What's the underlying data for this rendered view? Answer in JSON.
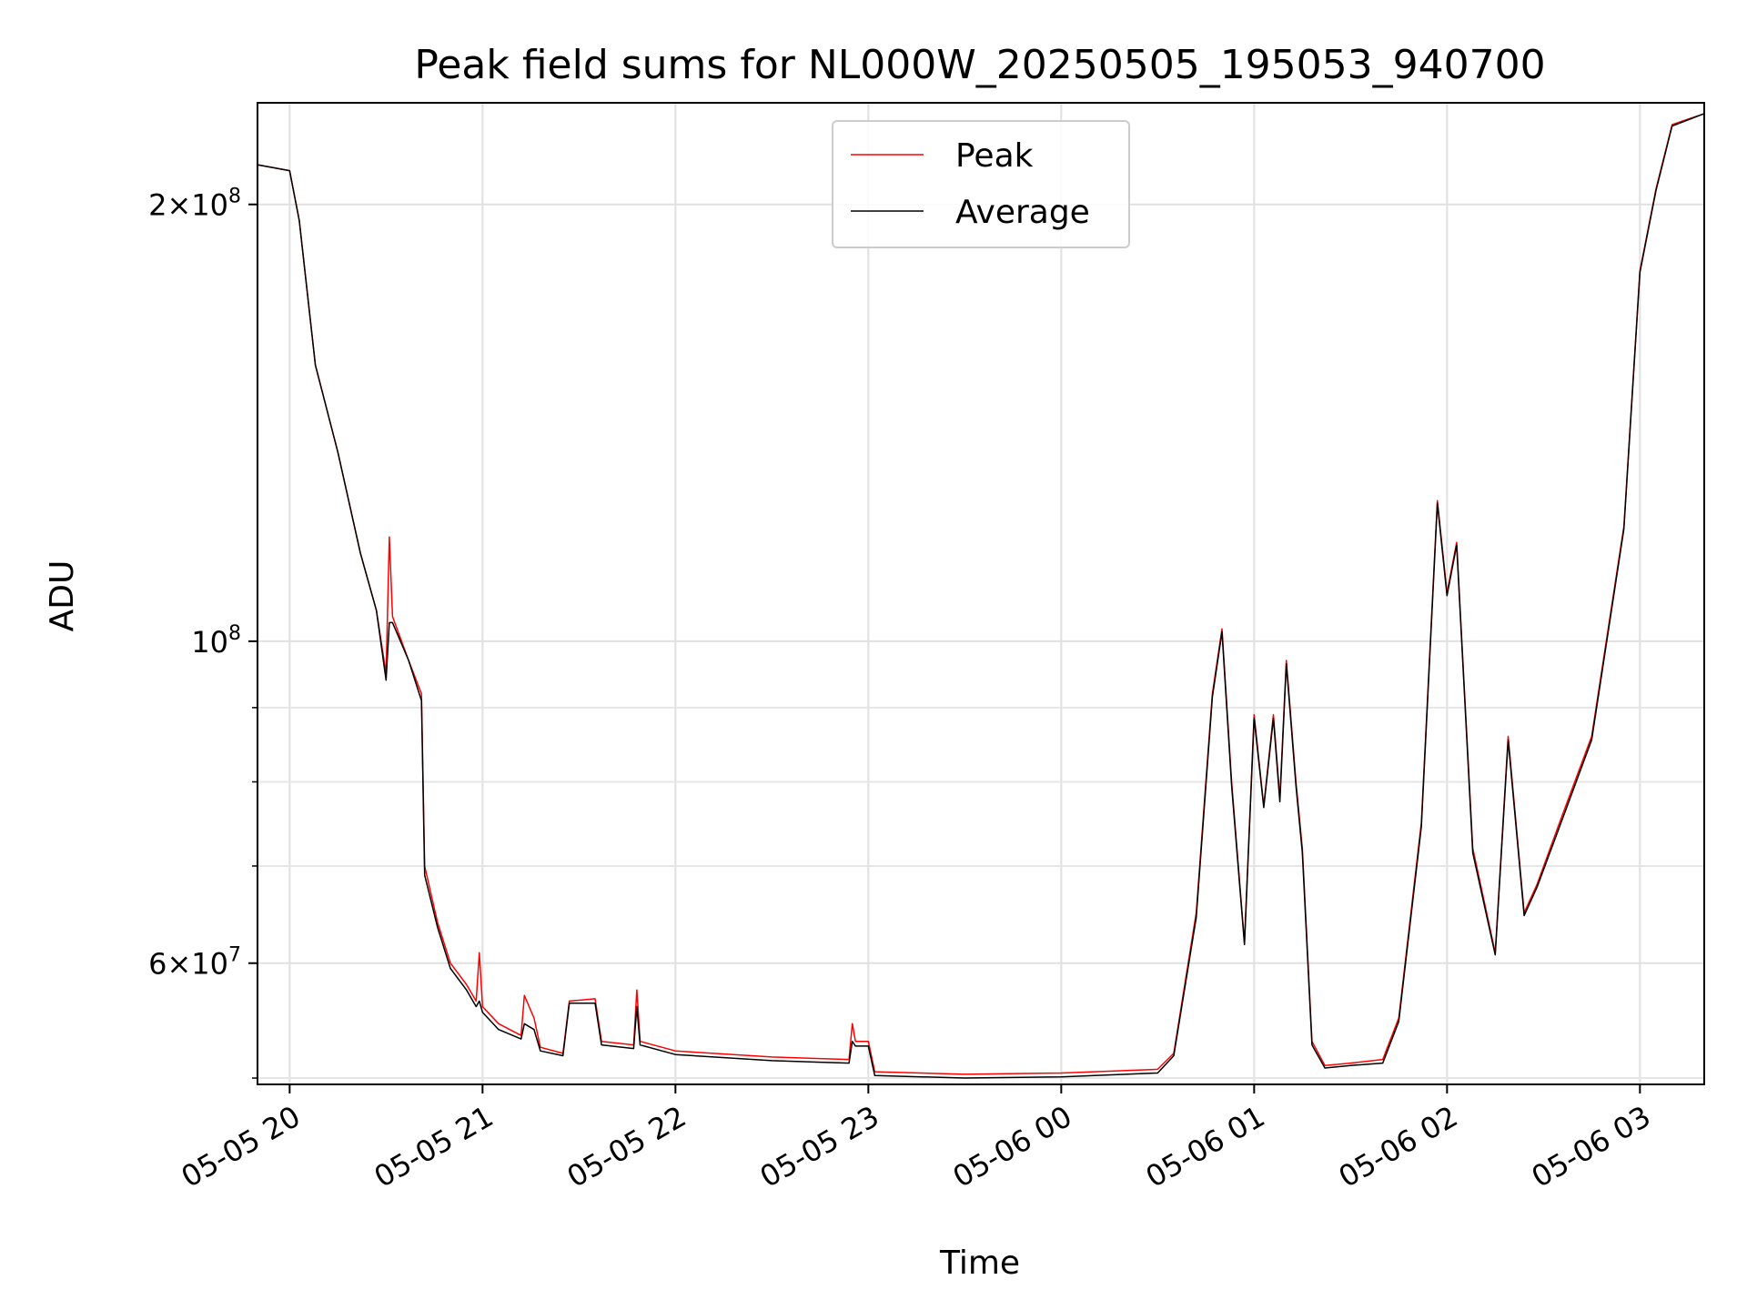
{
  "chart_data": {
    "type": "line",
    "title": "Peak field sums for NL000W_20250505_195053_940700",
    "xlabel": "Time",
    "ylabel": "ADU",
    "yscale": "log",
    "ylim": [
      49500000,
      235000000
    ],
    "xlim": [
      "2025-05-05 19:50",
      "2025-05-06 03:20"
    ],
    "x_ticks": [
      {
        "value": "2025-05-05 20:00",
        "label": "05-05 20"
      },
      {
        "value": "2025-05-05 21:00",
        "label": "05-05 21"
      },
      {
        "value": "2025-05-05 22:00",
        "label": "05-05 22"
      },
      {
        "value": "2025-05-05 23:00",
        "label": "05-05 23"
      },
      {
        "value": "2025-05-06 00:00",
        "label": "05-06 00"
      },
      {
        "value": "2025-05-06 01:00",
        "label": "05-06 01"
      },
      {
        "value": "2025-05-06 02:00",
        "label": "05-06 02"
      },
      {
        "value": "2025-05-06 03:00",
        "label": "05-06 03"
      }
    ],
    "y_major_ticks": [
      {
        "value": 60000000,
        "base": "6",
        "exp": "7"
      },
      {
        "value": 100000000,
        "base": "",
        "exp": "8"
      },
      {
        "value": 200000000,
        "base": "2",
        "exp": "8"
      }
    ],
    "y_minor_ticks": [
      50000000,
      70000000,
      80000000,
      90000000
    ],
    "grid": true,
    "legend_position": "top-center",
    "series": [
      {
        "name": "Peak",
        "color": "#ff0000",
        "points": [
          [
            "2025-05-05 19:50",
            213000000
          ],
          [
            "2025-05-05 19:55",
            212000000
          ],
          [
            "2025-05-05 20:00",
            211000000
          ],
          [
            "2025-05-05 20:03",
            195000000
          ],
          [
            "2025-05-05 20:08",
            155000000
          ],
          [
            "2025-05-05 20:15",
            135000000
          ],
          [
            "2025-05-05 20:22",
            115000000
          ],
          [
            "2025-05-05 20:27",
            105000000
          ],
          [
            "2025-05-05 20:30",
            95000000
          ],
          [
            "2025-05-05 20:31",
            118000000
          ],
          [
            "2025-05-05 20:32",
            104000000
          ],
          [
            "2025-05-05 20:37",
            97000000
          ],
          [
            "2025-05-05 20:41",
            92000000
          ],
          [
            "2025-05-05 20:42",
            70000000
          ],
          [
            "2025-05-05 20:46",
            64000000
          ],
          [
            "2025-05-05 20:50",
            60000000
          ],
          [
            "2025-05-05 20:55",
            58000000
          ],
          [
            "2025-05-05 20:58",
            56500000
          ],
          [
            "2025-05-05 20:59",
            61000000
          ],
          [
            "2025-05-05 21:00",
            56000000
          ],
          [
            "2025-05-05 21:05",
            54500000
          ],
          [
            "2025-05-05 21:12",
            53500000
          ],
          [
            "2025-05-05 21:13",
            57000000
          ],
          [
            "2025-05-05 21:16",
            55000000
          ],
          [
            "2025-05-05 21:18",
            52500000
          ],
          [
            "2025-05-05 21:25",
            52000000
          ],
          [
            "2025-05-05 21:27",
            56500000
          ],
          [
            "2025-05-05 21:35",
            56700000
          ],
          [
            "2025-05-05 21:37",
            53000000
          ],
          [
            "2025-05-05 21:47",
            52700000
          ],
          [
            "2025-05-05 21:48",
            57500000
          ],
          [
            "2025-05-05 21:49",
            53000000
          ],
          [
            "2025-05-05 22:00",
            52200000
          ],
          [
            "2025-05-05 22:30",
            51700000
          ],
          [
            "2025-05-05 22:54",
            51500000
          ],
          [
            "2025-05-05 22:55",
            54500000
          ],
          [
            "2025-05-05 22:56",
            53000000
          ],
          [
            "2025-05-05 23:00",
            53000000
          ],
          [
            "2025-05-05 23:02",
            50500000
          ],
          [
            "2025-05-05 23:30",
            50300000
          ],
          [
            "2025-05-06 00:00",
            50400000
          ],
          [
            "2025-05-06 00:30",
            50700000
          ],
          [
            "2025-05-06 00:35",
            52000000
          ],
          [
            "2025-05-06 00:42",
            65000000
          ],
          [
            "2025-05-06 00:47",
            92000000
          ],
          [
            "2025-05-06 00:50",
            102000000
          ],
          [
            "2025-05-06 00:53",
            80000000
          ],
          [
            "2025-05-06 00:57",
            62000000
          ],
          [
            "2025-05-06 01:00",
            89000000
          ],
          [
            "2025-05-06 01:03",
            77000000
          ],
          [
            "2025-05-06 01:06",
            89000000
          ],
          [
            "2025-05-06 01:08",
            78000000
          ],
          [
            "2025-05-06 01:10",
            97000000
          ],
          [
            "2025-05-06 01:13",
            80000000
          ],
          [
            "2025-05-06 01:15",
            72000000
          ],
          [
            "2025-05-06 01:18",
            53000000
          ],
          [
            "2025-05-06 01:22",
            51000000
          ],
          [
            "2025-05-06 01:30",
            51200000
          ],
          [
            "2025-05-06 01:40",
            51500000
          ],
          [
            "2025-05-06 01:45",
            55000000
          ],
          [
            "2025-05-06 01:52",
            75000000
          ],
          [
            "2025-05-06 01:57",
            125000000
          ],
          [
            "2025-05-06 02:00",
            108000000
          ],
          [
            "2025-05-06 02:03",
            117000000
          ],
          [
            "2025-05-06 02:08",
            72000000
          ],
          [
            "2025-05-06 02:15",
            61000000
          ],
          [
            "2025-05-06 02:19",
            86000000
          ],
          [
            "2025-05-06 02:24",
            65000000
          ],
          [
            "2025-05-06 02:28",
            68000000
          ],
          [
            "2025-05-06 02:35",
            75000000
          ],
          [
            "2025-05-06 02:45",
            86000000
          ],
          [
            "2025-05-06 02:55",
            120000000
          ],
          [
            "2025-05-06 03:00",
            180000000
          ],
          [
            "2025-05-06 03:05",
            205000000
          ],
          [
            "2025-05-06 03:10",
            227000000
          ],
          [
            "2025-05-06 03:20",
            231000000
          ]
        ]
      },
      {
        "name": "Average",
        "color": "#000000",
        "points": [
          [
            "2025-05-05 19:50",
            213000000
          ],
          [
            "2025-05-05 19:55",
            212000000
          ],
          [
            "2025-05-05 20:00",
            211000000
          ],
          [
            "2025-05-05 20:03",
            195000000
          ],
          [
            "2025-05-05 20:08",
            155000000
          ],
          [
            "2025-05-05 20:15",
            135000000
          ],
          [
            "2025-05-05 20:22",
            115000000
          ],
          [
            "2025-05-05 20:27",
            105000000
          ],
          [
            "2025-05-05 20:30",
            94000000
          ],
          [
            "2025-05-05 20:31",
            103000000
          ],
          [
            "2025-05-05 20:32",
            103000000
          ],
          [
            "2025-05-05 20:37",
            97000000
          ],
          [
            "2025-05-05 20:41",
            91000000
          ],
          [
            "2025-05-05 20:42",
            69000000
          ],
          [
            "2025-05-05 20:46",
            63500000
          ],
          [
            "2025-05-05 20:50",
            59500000
          ],
          [
            "2025-05-05 20:55",
            57500000
          ],
          [
            "2025-05-05 20:58",
            56000000
          ],
          [
            "2025-05-05 20:59",
            56500000
          ],
          [
            "2025-05-05 21:00",
            55500000
          ],
          [
            "2025-05-05 21:05",
            54000000
          ],
          [
            "2025-05-05 21:12",
            53200000
          ],
          [
            "2025-05-05 21:13",
            54500000
          ],
          [
            "2025-05-05 21:16",
            54000000
          ],
          [
            "2025-05-05 21:18",
            52200000
          ],
          [
            "2025-05-05 21:25",
            51800000
          ],
          [
            "2025-05-05 21:27",
            56300000
          ],
          [
            "2025-05-05 21:35",
            56300000
          ],
          [
            "2025-05-05 21:37",
            52700000
          ],
          [
            "2025-05-05 21:47",
            52400000
          ],
          [
            "2025-05-05 21:48",
            56000000
          ],
          [
            "2025-05-05 21:49",
            52700000
          ],
          [
            "2025-05-05 22:00",
            51900000
          ],
          [
            "2025-05-05 22:30",
            51400000
          ],
          [
            "2025-05-05 22:54",
            51200000
          ],
          [
            "2025-05-05 22:55",
            53000000
          ],
          [
            "2025-05-05 22:56",
            52600000
          ],
          [
            "2025-05-05 23:00",
            52600000
          ],
          [
            "2025-05-05 23:02",
            50200000
          ],
          [
            "2025-05-05 23:30",
            50000000
          ],
          [
            "2025-05-06 00:00",
            50100000
          ],
          [
            "2025-05-06 00:30",
            50400000
          ],
          [
            "2025-05-06 00:35",
            51800000
          ],
          [
            "2025-05-06 00:42",
            64500000
          ],
          [
            "2025-05-06 00:47",
            91500000
          ],
          [
            "2025-05-06 00:50",
            101500000
          ],
          [
            "2025-05-06 00:53",
            79500000
          ],
          [
            "2025-05-06 00:57",
            61800000
          ],
          [
            "2025-05-06 01:00",
            88500000
          ],
          [
            "2025-05-06 01:03",
            76800000
          ],
          [
            "2025-05-06 01:06",
            88500000
          ],
          [
            "2025-05-06 01:08",
            77500000
          ],
          [
            "2025-05-06 01:10",
            96500000
          ],
          [
            "2025-05-06 01:13",
            79500000
          ],
          [
            "2025-05-06 01:15",
            71500000
          ],
          [
            "2025-05-06 01:18",
            52700000
          ],
          [
            "2025-05-06 01:22",
            50800000
          ],
          [
            "2025-05-06 01:30",
            51000000
          ],
          [
            "2025-05-06 01:40",
            51200000
          ],
          [
            "2025-05-06 01:45",
            54700000
          ],
          [
            "2025-05-06 01:52",
            74500000
          ],
          [
            "2025-05-06 01:57",
            124500000
          ],
          [
            "2025-05-06 02:00",
            107500000
          ],
          [
            "2025-05-06 02:03",
            116500000
          ],
          [
            "2025-05-06 02:08",
            71500000
          ],
          [
            "2025-05-06 02:15",
            60800000
          ],
          [
            "2025-05-06 02:19",
            85500000
          ],
          [
            "2025-05-06 02:24",
            64700000
          ],
          [
            "2025-05-06 02:28",
            67700000
          ],
          [
            "2025-05-06 02:35",
            74500000
          ],
          [
            "2025-05-06 02:45",
            85500000
          ],
          [
            "2025-05-06 02:55",
            119500000
          ],
          [
            "2025-05-06 03:00",
            179500000
          ],
          [
            "2025-05-06 03:05",
            204500000
          ],
          [
            "2025-05-06 03:10",
            226500000
          ],
          [
            "2025-05-06 03:20",
            231000000
          ]
        ]
      }
    ]
  }
}
